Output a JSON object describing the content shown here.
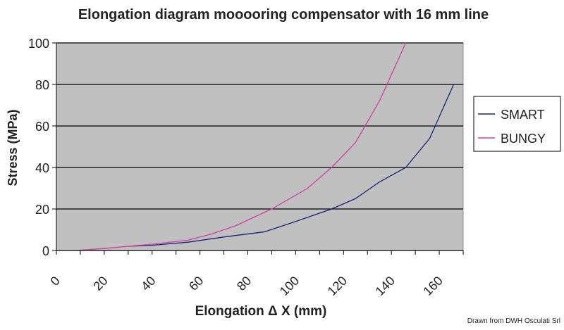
{
  "chart_data": {
    "type": "line",
    "title": "Elongation diagram mooooring compensator with 16 mm line",
    "xlabel": "Elongation Δ X (mm)",
    "ylabel": "Stress (MPa)",
    "xlim": [
      0,
      170
    ],
    "ylim": [
      0,
      100
    ],
    "xticks": [
      0,
      20,
      40,
      60,
      80,
      100,
      120,
      140,
      160
    ],
    "yticks": [
      0,
      20,
      40,
      60,
      80,
      100
    ],
    "grid": "horizontal",
    "legend": "right",
    "plot_bg": "#c0c0c0",
    "series": [
      {
        "name": "SMART",
        "color": "#1f1f7a",
        "x": [
          30,
          40,
          55,
          70,
          87,
          100,
          115,
          125,
          135,
          146,
          156,
          166
        ],
        "y": [
          2,
          2.5,
          4,
          6.5,
          9,
          14,
          20,
          25,
          33,
          40,
          54,
          80
        ]
      },
      {
        "name": "BUNGY",
        "color": "#d040a0",
        "x": [
          8,
          20,
          40,
          55,
          65,
          75,
          90,
          105,
          115,
          125,
          135,
          146
        ],
        "y": [
          0,
          1,
          3,
          5,
          8,
          12,
          20,
          30,
          40,
          52,
          72,
          100
        ]
      }
    ]
  },
  "footer": "Drawn from DWH Osculati Srl"
}
